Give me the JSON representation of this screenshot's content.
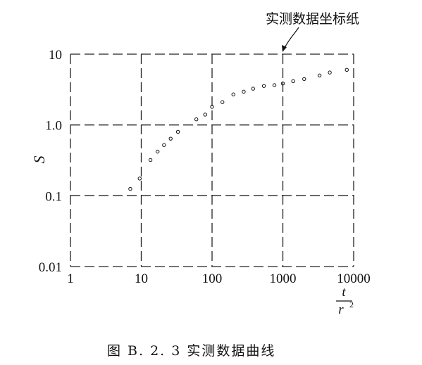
{
  "chart_data": {
    "type": "scatter",
    "x_scale": "log",
    "y_scale": "log",
    "xlim": [
      1,
      10000
    ],
    "ylim": [
      0.01,
      10
    ],
    "x_ticks": [
      "1",
      "10",
      "100",
      "1000",
      "10000"
    ],
    "y_ticks": [
      "10",
      "1.0",
      "0.1",
      "0.01"
    ],
    "ylabel": "S",
    "xlabel": {
      "numerator": "t",
      "denominator": "r",
      "exponent": "2"
    },
    "grid": true,
    "annotation": "实测数据坐标纸",
    "caption": "图 B. 2. 3   实测数据曲线",
    "series": [
      {
        "x": [
          7,
          9.5,
          13.5,
          17,
          21,
          26,
          33,
          60,
          80,
          100,
          140,
          200,
          280,
          380,
          540,
          760,
          1000,
          1400,
          2000,
          3300,
          4600,
          8000
        ],
        "y": [
          0.125,
          0.175,
          0.32,
          0.42,
          0.52,
          0.64,
          0.8,
          1.2,
          1.4,
          1.8,
          2.1,
          2.7,
          2.95,
          3.25,
          3.55,
          3.65,
          3.85,
          4.15,
          4.45,
          5.0,
          5.5,
          6.0
        ]
      }
    ]
  }
}
